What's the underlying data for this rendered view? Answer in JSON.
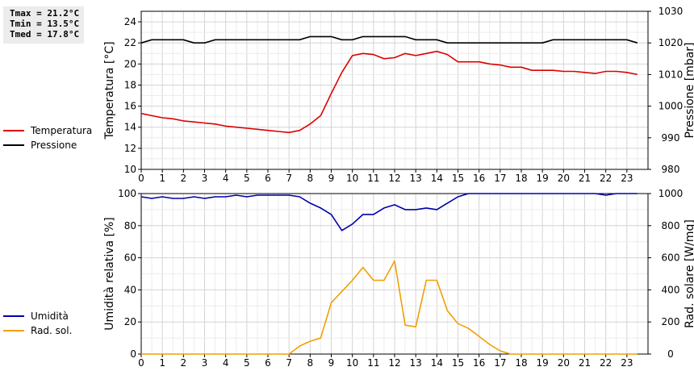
{
  "stats": {
    "tmax": "Tmax = 21.2°C",
    "tmin": "Tmin = 13.5°C",
    "tmed": "Tmed = 17.8°C"
  },
  "legend_top": [
    {
      "label": "Temperatura",
      "color": "#dd0000"
    },
    {
      "label": "Pressione",
      "color": "#000000"
    }
  ],
  "legend_bottom": [
    {
      "label": "Umidità",
      "color": "#0000aa"
    },
    {
      "label": "Rad. sol.",
      "color": "#f0a000"
    }
  ],
  "chart_data": [
    {
      "type": "line",
      "ylabel": "Temperatura [°C]",
      "y2label": "Pressione [mbar]",
      "xlim": [
        0,
        24
      ],
      "ylim": [
        10,
        25
      ],
      "y2lim": [
        980,
        1030
      ],
      "xticks": [
        0,
        1,
        2,
        3,
        4,
        5,
        6,
        7,
        8,
        9,
        10,
        11,
        12,
        13,
        14,
        15,
        16,
        17,
        18,
        19,
        20,
        21,
        22,
        23
      ],
      "yticks": [
        10,
        12,
        14,
        16,
        18,
        20,
        22,
        24
      ],
      "y2ticks": [
        980,
        990,
        1000,
        1010,
        1020,
        1030
      ],
      "grid": true,
      "series": [
        {
          "name": "Temperatura",
          "axis": "left",
          "color": "#dd0000",
          "x": [
            0,
            0.5,
            1,
            1.5,
            2,
            2.5,
            3,
            3.5,
            4,
            4.5,
            5,
            5.5,
            6,
            6.5,
            7,
            7.5,
            8,
            8.5,
            9,
            9.5,
            10,
            10.5,
            11,
            11.5,
            12,
            12.5,
            13,
            13.5,
            14,
            14.5,
            15,
            15.5,
            16,
            16.5,
            17,
            17.5,
            18,
            18.5,
            19,
            19.5,
            20,
            20.5,
            21,
            21.5,
            22,
            22.5,
            23,
            23.5
          ],
          "y": [
            15.3,
            15.1,
            14.9,
            14.8,
            14.6,
            14.5,
            14.4,
            14.3,
            14.1,
            14.0,
            13.9,
            13.8,
            13.7,
            13.6,
            13.5,
            13.7,
            14.3,
            15.1,
            17.2,
            19.2,
            20.8,
            21.0,
            20.9,
            20.5,
            20.6,
            21.0,
            20.8,
            21.0,
            21.2,
            20.9,
            20.2,
            20.2,
            20.2,
            20.0,
            19.9,
            19.7,
            19.7,
            19.4,
            19.4,
            19.4,
            19.3,
            19.3,
            19.2,
            19.1,
            19.3,
            19.3,
            19.2,
            19.0
          ]
        },
        {
          "name": "Pressione",
          "axis": "right",
          "color": "#000000",
          "x": [
            0,
            0.5,
            1,
            1.5,
            2,
            2.5,
            3,
            3.5,
            4,
            4.5,
            5,
            5.5,
            6,
            6.5,
            7,
            7.5,
            8,
            8.5,
            9,
            9.5,
            10,
            10.5,
            11,
            11.5,
            12,
            12.5,
            13,
            13.5,
            14,
            14.5,
            15,
            15.5,
            16,
            16.5,
            17,
            17.5,
            18,
            18.5,
            19,
            19.5,
            20,
            20.5,
            21,
            21.5,
            22,
            22.5,
            23,
            23.5
          ],
          "y": [
            1020,
            1021,
            1021,
            1021,
            1021,
            1020,
            1020,
            1021,
            1021,
            1021,
            1021,
            1021,
            1021,
            1021,
            1021,
            1021,
            1022,
            1022,
            1022,
            1021,
            1021,
            1022,
            1022,
            1022,
            1022,
            1022,
            1021,
            1021,
            1021,
            1020,
            1020,
            1020,
            1020,
            1020,
            1020,
            1020,
            1020,
            1020,
            1020,
            1021,
            1021,
            1021,
            1021,
            1021,
            1021,
            1021,
            1021,
            1020
          ]
        }
      ]
    },
    {
      "type": "line",
      "ylabel": "Umidità relativa [%]",
      "y2label": "Rad. solare [W/mq]",
      "xlim": [
        0,
        24
      ],
      "ylim": [
        0,
        100
      ],
      "y2lim": [
        0,
        1000
      ],
      "xticks": [
        0,
        1,
        2,
        3,
        4,
        5,
        6,
        7,
        8,
        9,
        10,
        11,
        12,
        13,
        14,
        15,
        16,
        17,
        18,
        19,
        20,
        21,
        22,
        23
      ],
      "yticks": [
        0,
        20,
        40,
        60,
        80,
        100
      ],
      "y2ticks": [
        0,
        200,
        400,
        600,
        800,
        1000
      ],
      "grid": true,
      "series": [
        {
          "name": "Umidità",
          "axis": "left",
          "color": "#0000aa",
          "x": [
            0,
            0.5,
            1,
            1.5,
            2,
            2.5,
            3,
            3.5,
            4,
            4.5,
            5,
            5.5,
            6,
            6.5,
            7,
            7.5,
            8,
            8.5,
            9,
            9.5,
            10,
            10.5,
            11,
            11.5,
            12,
            12.5,
            13,
            13.5,
            14,
            14.5,
            15,
            15.5,
            16,
            16.5,
            17,
            17.5,
            18,
            18.5,
            19,
            19.5,
            20,
            20.5,
            21,
            21.5,
            22,
            22.5,
            23,
            23.5
          ],
          "y": [
            98,
            97,
            98,
            97,
            97,
            98,
            97,
            98,
            98,
            99,
            98,
            99,
            99,
            99,
            99,
            98,
            94,
            91,
            87,
            77,
            81,
            87,
            87,
            91,
            93,
            90,
            90,
            91,
            90,
            94,
            98,
            100,
            100,
            100,
            100,
            100,
            100,
            100,
            100,
            100,
            100,
            100,
            100,
            100,
            99,
            100,
            100,
            100
          ]
        },
        {
          "name": "Rad. sol.",
          "axis": "right",
          "color": "#f0a000",
          "x": [
            0,
            0.5,
            1,
            1.5,
            2,
            2.5,
            3,
            3.5,
            4,
            4.5,
            5,
            5.5,
            6,
            6.5,
            7,
            7.5,
            8,
            8.5,
            9,
            9.5,
            10,
            10.5,
            11,
            11.5,
            12,
            12.5,
            13,
            13.5,
            14,
            14.5,
            15,
            15.5,
            16,
            16.5,
            17,
            17.5,
            18,
            18.5,
            19,
            19.5,
            20,
            20.5,
            21,
            21.5,
            22,
            22.5,
            23,
            23.5
          ],
          "y": [
            0,
            0,
            0,
            0,
            0,
            0,
            0,
            0,
            0,
            0,
            0,
            0,
            0,
            0,
            0,
            50,
            80,
            100,
            320,
            390,
            460,
            540,
            460,
            460,
            580,
            180,
            170,
            460,
            460,
            270,
            190,
            160,
            110,
            60,
            20,
            0,
            0,
            0,
            0,
            0,
            0,
            0,
            0,
            0,
            0,
            0,
            0,
            0
          ]
        }
      ]
    }
  ]
}
